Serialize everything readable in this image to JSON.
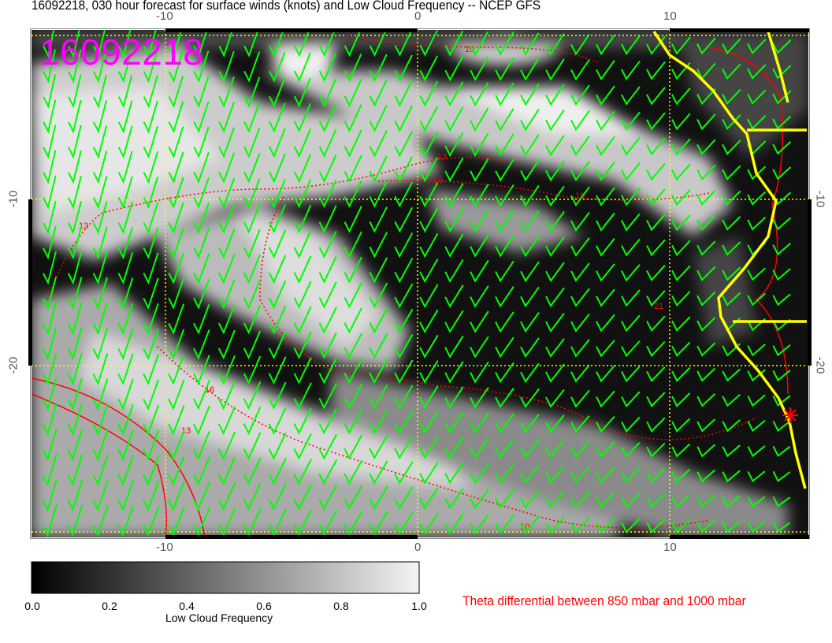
{
  "title": "16092218, 030 hour forecast for surface winds (knots) and Low Cloud Frequency -- NCEP GFS",
  "stamp": "16092218",
  "map": {
    "lon_ticks": [
      "-10",
      "0",
      "10"
    ],
    "lat_ticks": [
      "-10",
      "-20"
    ],
    "contour_labels": [
      "10",
      "13",
      "16",
      "19",
      "21"
    ],
    "colors": {
      "wind_barbs": "#00ff00",
      "coastline": "#ffff00",
      "theta_contours": "#ff0000",
      "stamp": "#ff00ff",
      "graticule": "#ffff00"
    }
  },
  "colorbar": {
    "ticks": [
      "0.0",
      "0.2",
      "0.4",
      "0.6",
      "0.8",
      "1.0"
    ],
    "label": "Low Cloud Frequency",
    "range": [
      0.0,
      1.0
    ]
  },
  "theta_label": "Theta differential between 850 mbar and 1000 mbar"
}
